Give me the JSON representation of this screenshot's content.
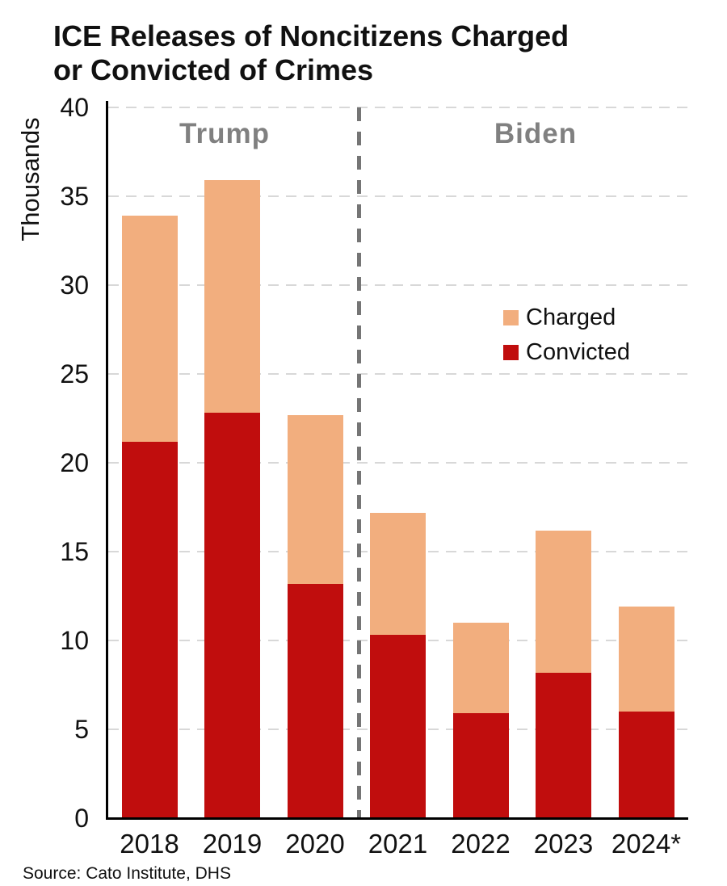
{
  "title": {
    "line1": "ICE Releases of Noncitizens Charged",
    "line2": "or Convicted of Crimes"
  },
  "source": "Source: Cato Institute, DHS",
  "colors": {
    "charged": "#F2AE7E",
    "convicted": "#C00D0D",
    "gridline": "#D8D8D8",
    "divider": "#757575",
    "era_label": "#808080",
    "axis": "#000000",
    "text": "#111111"
  },
  "chart_data": {
    "type": "bar",
    "stacked": true,
    "title": "ICE Releases of Noncitizens Charged or Convicted of Crimes",
    "xlabel": "",
    "ylabel": "Thousands",
    "ylim": [
      0,
      40
    ],
    "yticks": [
      0,
      5,
      10,
      15,
      20,
      25,
      30,
      35,
      40
    ],
    "grid": "horizontal dashed gridlines at every 5 thousand",
    "legend_position": "middle-right",
    "legend_order": [
      "Charged",
      "Convicted"
    ],
    "categories": [
      "2018",
      "2019",
      "2020",
      "2021",
      "2022",
      "2023",
      "2024*"
    ],
    "series": [
      {
        "name": "Convicted",
        "color": "#C00D0D",
        "values": [
          21.2,
          22.8,
          13.2,
          10.3,
          5.9,
          8.2,
          6.0
        ]
      },
      {
        "name": "Charged",
        "color": "#F2AE7E",
        "values": [
          12.7,
          13.1,
          9.5,
          6.9,
          5.1,
          8.0,
          5.9
        ]
      }
    ],
    "totals": [
      33.9,
      35.9,
      22.7,
      17.2,
      11.0,
      16.2,
      11.9
    ],
    "annotations": [
      {
        "label": "Trump",
        "categories": [
          "2018",
          "2019",
          "2020"
        ]
      },
      {
        "label": "Biden",
        "categories": [
          "2021",
          "2022",
          "2023",
          "2024*"
        ]
      }
    ],
    "divider": {
      "between": [
        "2020",
        "2021"
      ],
      "style": "vertical dashed gray line"
    }
  }
}
